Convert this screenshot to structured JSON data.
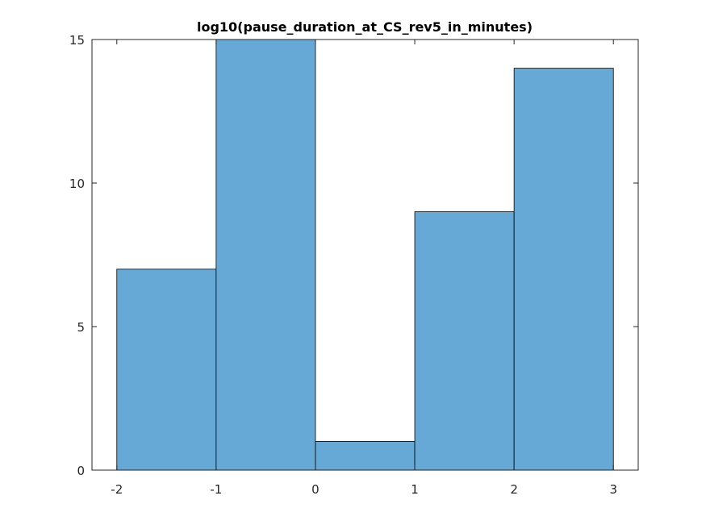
{
  "chart_data": {
    "type": "histogram",
    "title": "log10(pause_duration_at_CS_rev5_in_minutes)",
    "xlabel": "",
    "ylabel": "",
    "bin_edges": [
      -2,
      -1,
      0,
      1,
      2,
      3
    ],
    "counts": [
      7,
      15,
      1,
      9,
      14
    ],
    "xlim": [
      -2.25,
      3.25
    ],
    "ylim": [
      0,
      15
    ],
    "xticks": [
      -2,
      -1,
      0,
      1,
      2,
      3
    ],
    "yticks": [
      0,
      5,
      10,
      15
    ],
    "grid": false,
    "legend": "none",
    "bar_color": "#66a9d6",
    "edge_color": "#000000",
    "axis_color": "#262626"
  }
}
